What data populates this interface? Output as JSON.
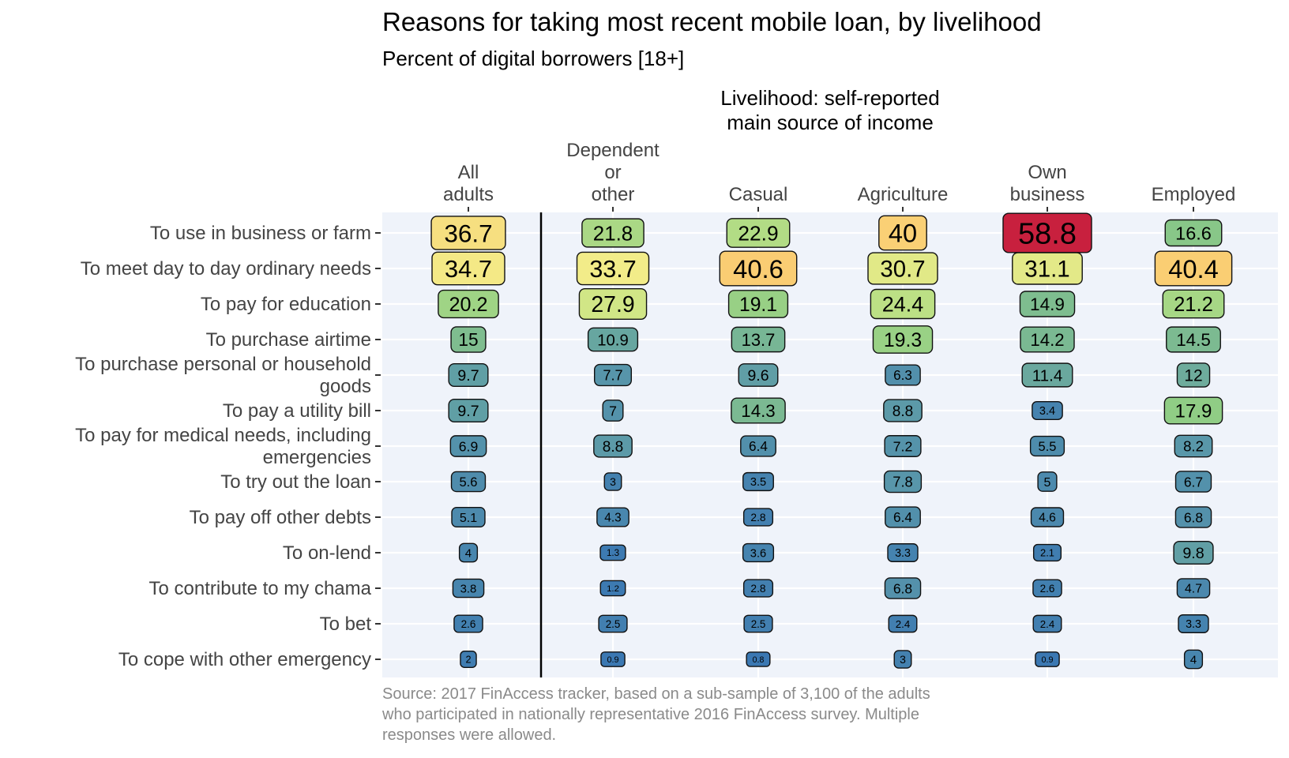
{
  "chart_data": {
    "type": "table",
    "title": "Reasons for taking most recent mobile loan, by livelihood",
    "subtitle": "Percent of digital borrowers [18+]",
    "group_title_lines": [
      "Livelihood: self-reported",
      "main source of income"
    ],
    "caption_lines": [
      "Source: 2017 FinAccess tracker, based on a sub-sample of 3,100 of the adults",
      "who participated in nationally representative 2016 FinAccess survey. Multiple",
      "responses were allowed."
    ],
    "columns": [
      {
        "label_lines": [
          "All",
          "adults"
        ]
      },
      {
        "label_lines": [
          "Dependent",
          "or",
          "other"
        ]
      },
      {
        "label_lines": [
          "Casual"
        ]
      },
      {
        "label_lines": [
          "Agriculture"
        ]
      },
      {
        "label_lines": [
          "Own",
          "business"
        ]
      },
      {
        "label_lines": [
          "Employed"
        ]
      }
    ],
    "rows": [
      {
        "label_lines": [
          "To use in business or farm"
        ],
        "values": [
          36.7,
          21.8,
          22.9,
          40,
          58.8,
          16.6
        ]
      },
      {
        "label_lines": [
          "To meet day to day ordinary needs"
        ],
        "values": [
          34.7,
          33.7,
          40.6,
          30.7,
          31.1,
          40.4
        ]
      },
      {
        "label_lines": [
          "To pay for education"
        ],
        "values": [
          20.2,
          27.9,
          19.1,
          24.4,
          14.9,
          21.2
        ]
      },
      {
        "label_lines": [
          "To purchase airtime"
        ],
        "values": [
          15,
          10.9,
          13.7,
          19.3,
          14.2,
          14.5
        ]
      },
      {
        "label_lines": [
          "To purchase personal or household",
          "goods"
        ],
        "values": [
          9.7,
          7.7,
          9.6,
          6.3,
          11.4,
          12
        ]
      },
      {
        "label_lines": [
          "To pay a utility bill"
        ],
        "values": [
          9.7,
          7,
          14.3,
          8.8,
          3.4,
          17.9
        ]
      },
      {
        "label_lines": [
          "To pay for medical needs, including",
          "emergencies"
        ],
        "values": [
          6.9,
          8.8,
          6.4,
          7.2,
          5.5,
          8.2
        ]
      },
      {
        "label_lines": [
          "To try out the loan"
        ],
        "values": [
          5.6,
          3,
          3.5,
          7.8,
          5,
          6.7
        ]
      },
      {
        "label_lines": [
          "To pay off other debts"
        ],
        "values": [
          5.1,
          4.3,
          2.8,
          6.4,
          4.6,
          6.8
        ]
      },
      {
        "label_lines": [
          "To on-lend"
        ],
        "values": [
          4,
          1.3,
          3.6,
          3.3,
          2.1,
          9.8
        ]
      },
      {
        "label_lines": [
          "To contribute to my chama"
        ],
        "values": [
          3.8,
          1.2,
          2.8,
          6.8,
          2.6,
          4.7
        ]
      },
      {
        "label_lines": [
          "To bet"
        ],
        "values": [
          2.6,
          2.5,
          2.5,
          2.4,
          2.4,
          3.3
        ]
      },
      {
        "label_lines": [
          "To cope with other emergency"
        ],
        "values": [
          2,
          0.9,
          0.8,
          3,
          0.9,
          4
        ]
      }
    ],
    "value_range": [
      0.8,
      58.8
    ],
    "color_scale": [
      "#3B78B2",
      "#5D9BA8",
      "#8CCB85",
      "#C5E485",
      "#F3EC89",
      "#FCC66D",
      "#F78A54",
      "#C8203E"
    ],
    "panel_background": "#EFF3FA",
    "grid": true,
    "separator_after_column": 0
  }
}
